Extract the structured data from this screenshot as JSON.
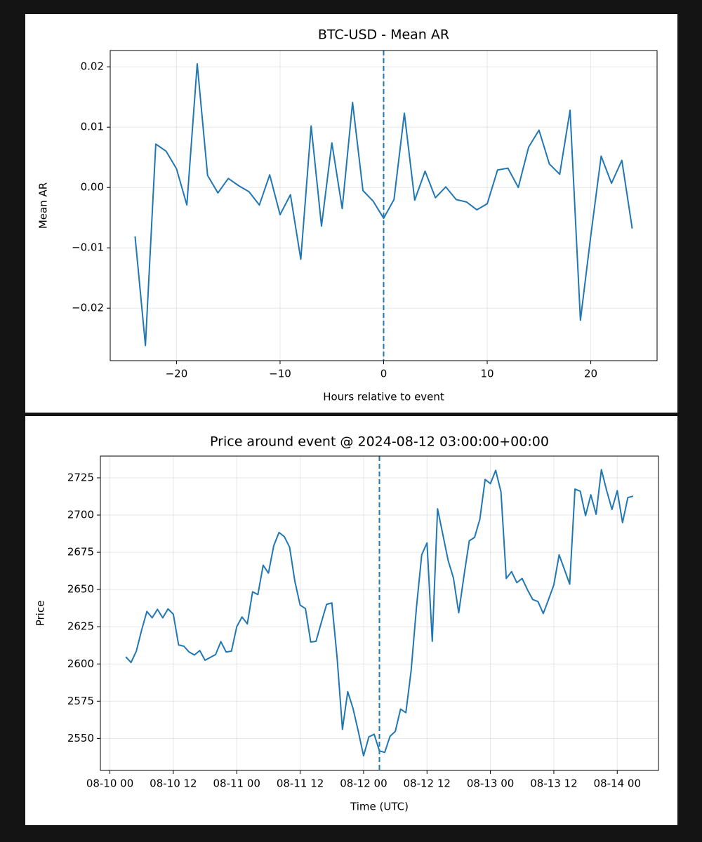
{
  "chart_data": [
    {
      "type": "line",
      "title": "BTC-USD - Mean AR",
      "x_label": "Hours relative to event",
      "y_label": "Mean AR",
      "color": "#1f77b4",
      "grid": true,
      "vline": 0,
      "x": [
        -24,
        -23,
        -22,
        -21,
        -20,
        -19,
        -18,
        -17,
        -16,
        -15,
        -14,
        -13,
        -12,
        -11,
        -10,
        -9,
        -8,
        -7,
        -6,
        -5,
        -4,
        -3,
        -2,
        -1,
        0,
        1,
        2,
        3,
        4,
        5,
        6,
        7,
        8,
        9,
        10,
        11,
        12,
        13,
        14,
        15,
        16,
        17,
        18,
        19,
        20,
        21,
        22,
        23,
        24
      ],
      "values": [
        -0.0081,
        -0.0262,
        0.0072,
        0.006,
        0.0031,
        -0.0029,
        0.0205,
        0.002,
        -0.0009,
        0.0015,
        0.0003,
        -0.0007,
        -0.0029,
        0.0021,
        -0.0045,
        -0.0012,
        -0.0119,
        0.0102,
        -0.0064,
        0.0074,
        -0.0035,
        0.0141,
        -0.0005,
        -0.0023,
        -0.0051,
        -0.002,
        0.0123,
        -0.0021,
        0.0027,
        -0.0017,
        0.0001,
        -0.002,
        -0.0024,
        -0.0037,
        -0.0027,
        0.0029,
        0.0032,
        0.0,
        0.0067,
        0.0095,
        0.0039,
        0.0022,
        0.0128,
        -0.022,
        -0.008,
        0.0052,
        0.0007,
        0.0045,
        -0.0068
      ],
      "xlim": [
        -26.4,
        26.4
      ],
      "xticks": [
        {
          "value": -20,
          "label": "−20"
        },
        {
          "value": -10,
          "label": "−10"
        },
        0,
        10,
        20
      ],
      "ylim": [
        -0.0287,
        0.0227
      ],
      "yticks": [
        {
          "value": -0.02,
          "label": "−0.02"
        },
        {
          "value": -0.01,
          "label": "−0.01"
        },
        {
          "value": 0,
          "label": "0.00"
        },
        0.01,
        0.02
      ]
    },
    {
      "type": "line",
      "title": "Price around event @ 2024-08-12 03:00:00+00:00",
      "x_label": "Time (UTC)",
      "y_label": "Price",
      "color": "#1f77b4",
      "grid": true,
      "vline": "08-12 03:00",
      "x": [
        "08-10 03:00",
        "08-10 04:00",
        "08-10 05:00",
        "08-10 06:00",
        "08-10 07:00",
        "08-10 08:00",
        "08-10 09:00",
        "08-10 10:00",
        "08-10 11:00",
        "08-10 12:00",
        "08-10 13:00",
        "08-10 14:00",
        "08-10 15:00",
        "08-10 16:00",
        "08-10 17:00",
        "08-10 18:00",
        "08-10 19:00",
        "08-10 20:00",
        "08-10 21:00",
        "08-10 22:00",
        "08-10 23:00",
        "08-11 00:00",
        "08-11 01:00",
        "08-11 02:00",
        "08-11 03:00",
        "08-11 04:00",
        "08-11 05:00",
        "08-11 06:00",
        "08-11 07:00",
        "08-11 08:00",
        "08-11 09:00",
        "08-11 10:00",
        "08-11 11:00",
        "08-11 12:00",
        "08-11 13:00",
        "08-11 14:00",
        "08-11 15:00",
        "08-11 16:00",
        "08-11 17:00",
        "08-11 18:00",
        "08-11 19:00",
        "08-11 20:00",
        "08-11 21:00",
        "08-11 22:00",
        "08-11 23:00",
        "08-12 00:00",
        "08-12 01:00",
        "08-12 02:00",
        "08-12 03:00",
        "08-12 04:00",
        "08-12 05:00",
        "08-12 06:00",
        "08-12 07:00",
        "08-12 08:00",
        "08-12 09:00",
        "08-12 10:00",
        "08-12 11:00",
        "08-12 12:00",
        "08-12 13:00",
        "08-12 14:00",
        "08-12 15:00",
        "08-12 16:00",
        "08-12 17:00",
        "08-12 18:00",
        "08-12 19:00",
        "08-12 20:00",
        "08-12 21:00",
        "08-12 22:00",
        "08-12 23:00",
        "08-13 00:00",
        "08-13 01:00",
        "08-13 02:00",
        "08-13 03:00",
        "08-13 04:00",
        "08-13 05:00",
        "08-13 06:00",
        "08-13 07:00",
        "08-13 08:00",
        "08-13 09:00",
        "08-13 10:00",
        "08-13 11:00",
        "08-13 12:00",
        "08-13 13:00",
        "08-13 14:00",
        "08-13 15:00",
        "08-13 16:00",
        "08-13 17:00",
        "08-13 18:00",
        "08-13 19:00",
        "08-13 20:00",
        "08-13 21:00",
        "08-13 22:00",
        "08-13 23:00",
        "08-14 00:00",
        "08-14 01:00",
        "08-14 02:00",
        "08-14 03:00"
      ],
      "values": [
        2604.8,
        2601,
        2608.6,
        2622.7,
        2635.3,
        2631,
        2636.7,
        2631,
        2637,
        2633.4,
        2612.8,
        2611.9,
        2608,
        2606,
        2609,
        2602.5,
        2604.4,
        2606.3,
        2615,
        2608,
        2608.6,
        2625,
        2631.6,
        2626.9,
        2648.5,
        2646.6,
        2666.3,
        2661,
        2679.4,
        2688.3,
        2685.5,
        2678.5,
        2655.5,
        2639.5,
        2637.2,
        2614.7,
        2615.2,
        2627.8,
        2640,
        2641,
        2603.9,
        2556.1,
        2581.4,
        2570.2,
        2554.7,
        2538.3,
        2551,
        2552.8,
        2541.6,
        2540.6,
        2551.4,
        2554.7,
        2569.7,
        2567.3,
        2595.5,
        2637.7,
        2673.3,
        2681.3,
        2615.2,
        2704.2,
        2686.9,
        2669.5,
        2657.8,
        2634.4,
        2659.2,
        2682.7,
        2685,
        2697.2,
        2723.9,
        2721.1,
        2730,
        2715.5,
        2657.4,
        2662,
        2654.6,
        2657.4,
        2649.9,
        2643.3,
        2641.9,
        2633.9,
        2643.3,
        2653.1,
        2673.3,
        2663.5,
        2653.6,
        2717.4,
        2716,
        2699.6,
        2713.6,
        2700.5,
        2730.5,
        2716.4,
        2703.8,
        2716.4,
        2694.9,
        2711.7,
        2712.7
      ],
      "xlim": [
        "08-09 22:12",
        "08-14 07:48"
      ],
      "xticks": [
        {
          "value": "08-10 00:00",
          "label": "08-10 00"
        },
        {
          "value": "08-10 12:00",
          "label": "08-10 12"
        },
        {
          "value": "08-11 00:00",
          "label": "08-11 00"
        },
        {
          "value": "08-11 12:00",
          "label": "08-11 12"
        },
        {
          "value": "08-12 00:00",
          "label": "08-12 00"
        },
        {
          "value": "08-12 12:00",
          "label": "08-12 12"
        },
        {
          "value": "08-13 00:00",
          "label": "08-13 00"
        },
        {
          "value": "08-13 12:00",
          "label": "08-13 12"
        },
        {
          "value": "08-14 00:00",
          "label": "08-14 00"
        }
      ],
      "ylim": [
        2528.5,
        2739.6
      ],
      "yticks": [
        2550,
        2575,
        2600,
        2625,
        2650,
        2675,
        2700,
        2725
      ]
    }
  ]
}
